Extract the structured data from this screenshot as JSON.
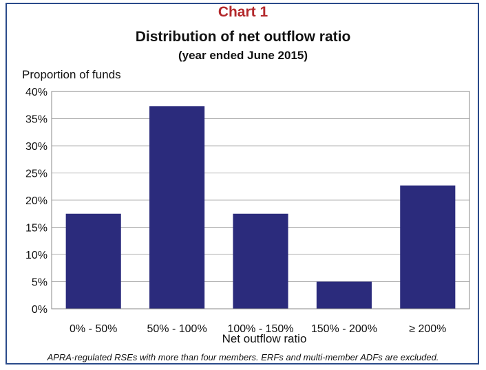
{
  "chart_number": "Chart 1",
  "chart_data": {
    "type": "bar",
    "title": "Distribution of net outflow ratio",
    "subtitle": "(year ended June 2015)",
    "ylabel": "Proportion of funds",
    "xlabel": "Net outflow ratio",
    "categories": [
      "0% - 50%",
      "50% - 100%",
      "100% - 150%",
      "150% - 200%",
      "≥ 200%"
    ],
    "values": [
      17.5,
      37.3,
      17.5,
      5.0,
      22.7
    ],
    "ylim": [
      0,
      40
    ],
    "yticks": [
      "0%",
      "5%",
      "10%",
      "15%",
      "20%",
      "25%",
      "30%",
      "35%",
      "40%"
    ],
    "grid": true,
    "bar_color": "#2b2b7c"
  },
  "footnote": "APRA-regulated RSEs with more than four members. ERFs and multi-member ADFs are excluded."
}
